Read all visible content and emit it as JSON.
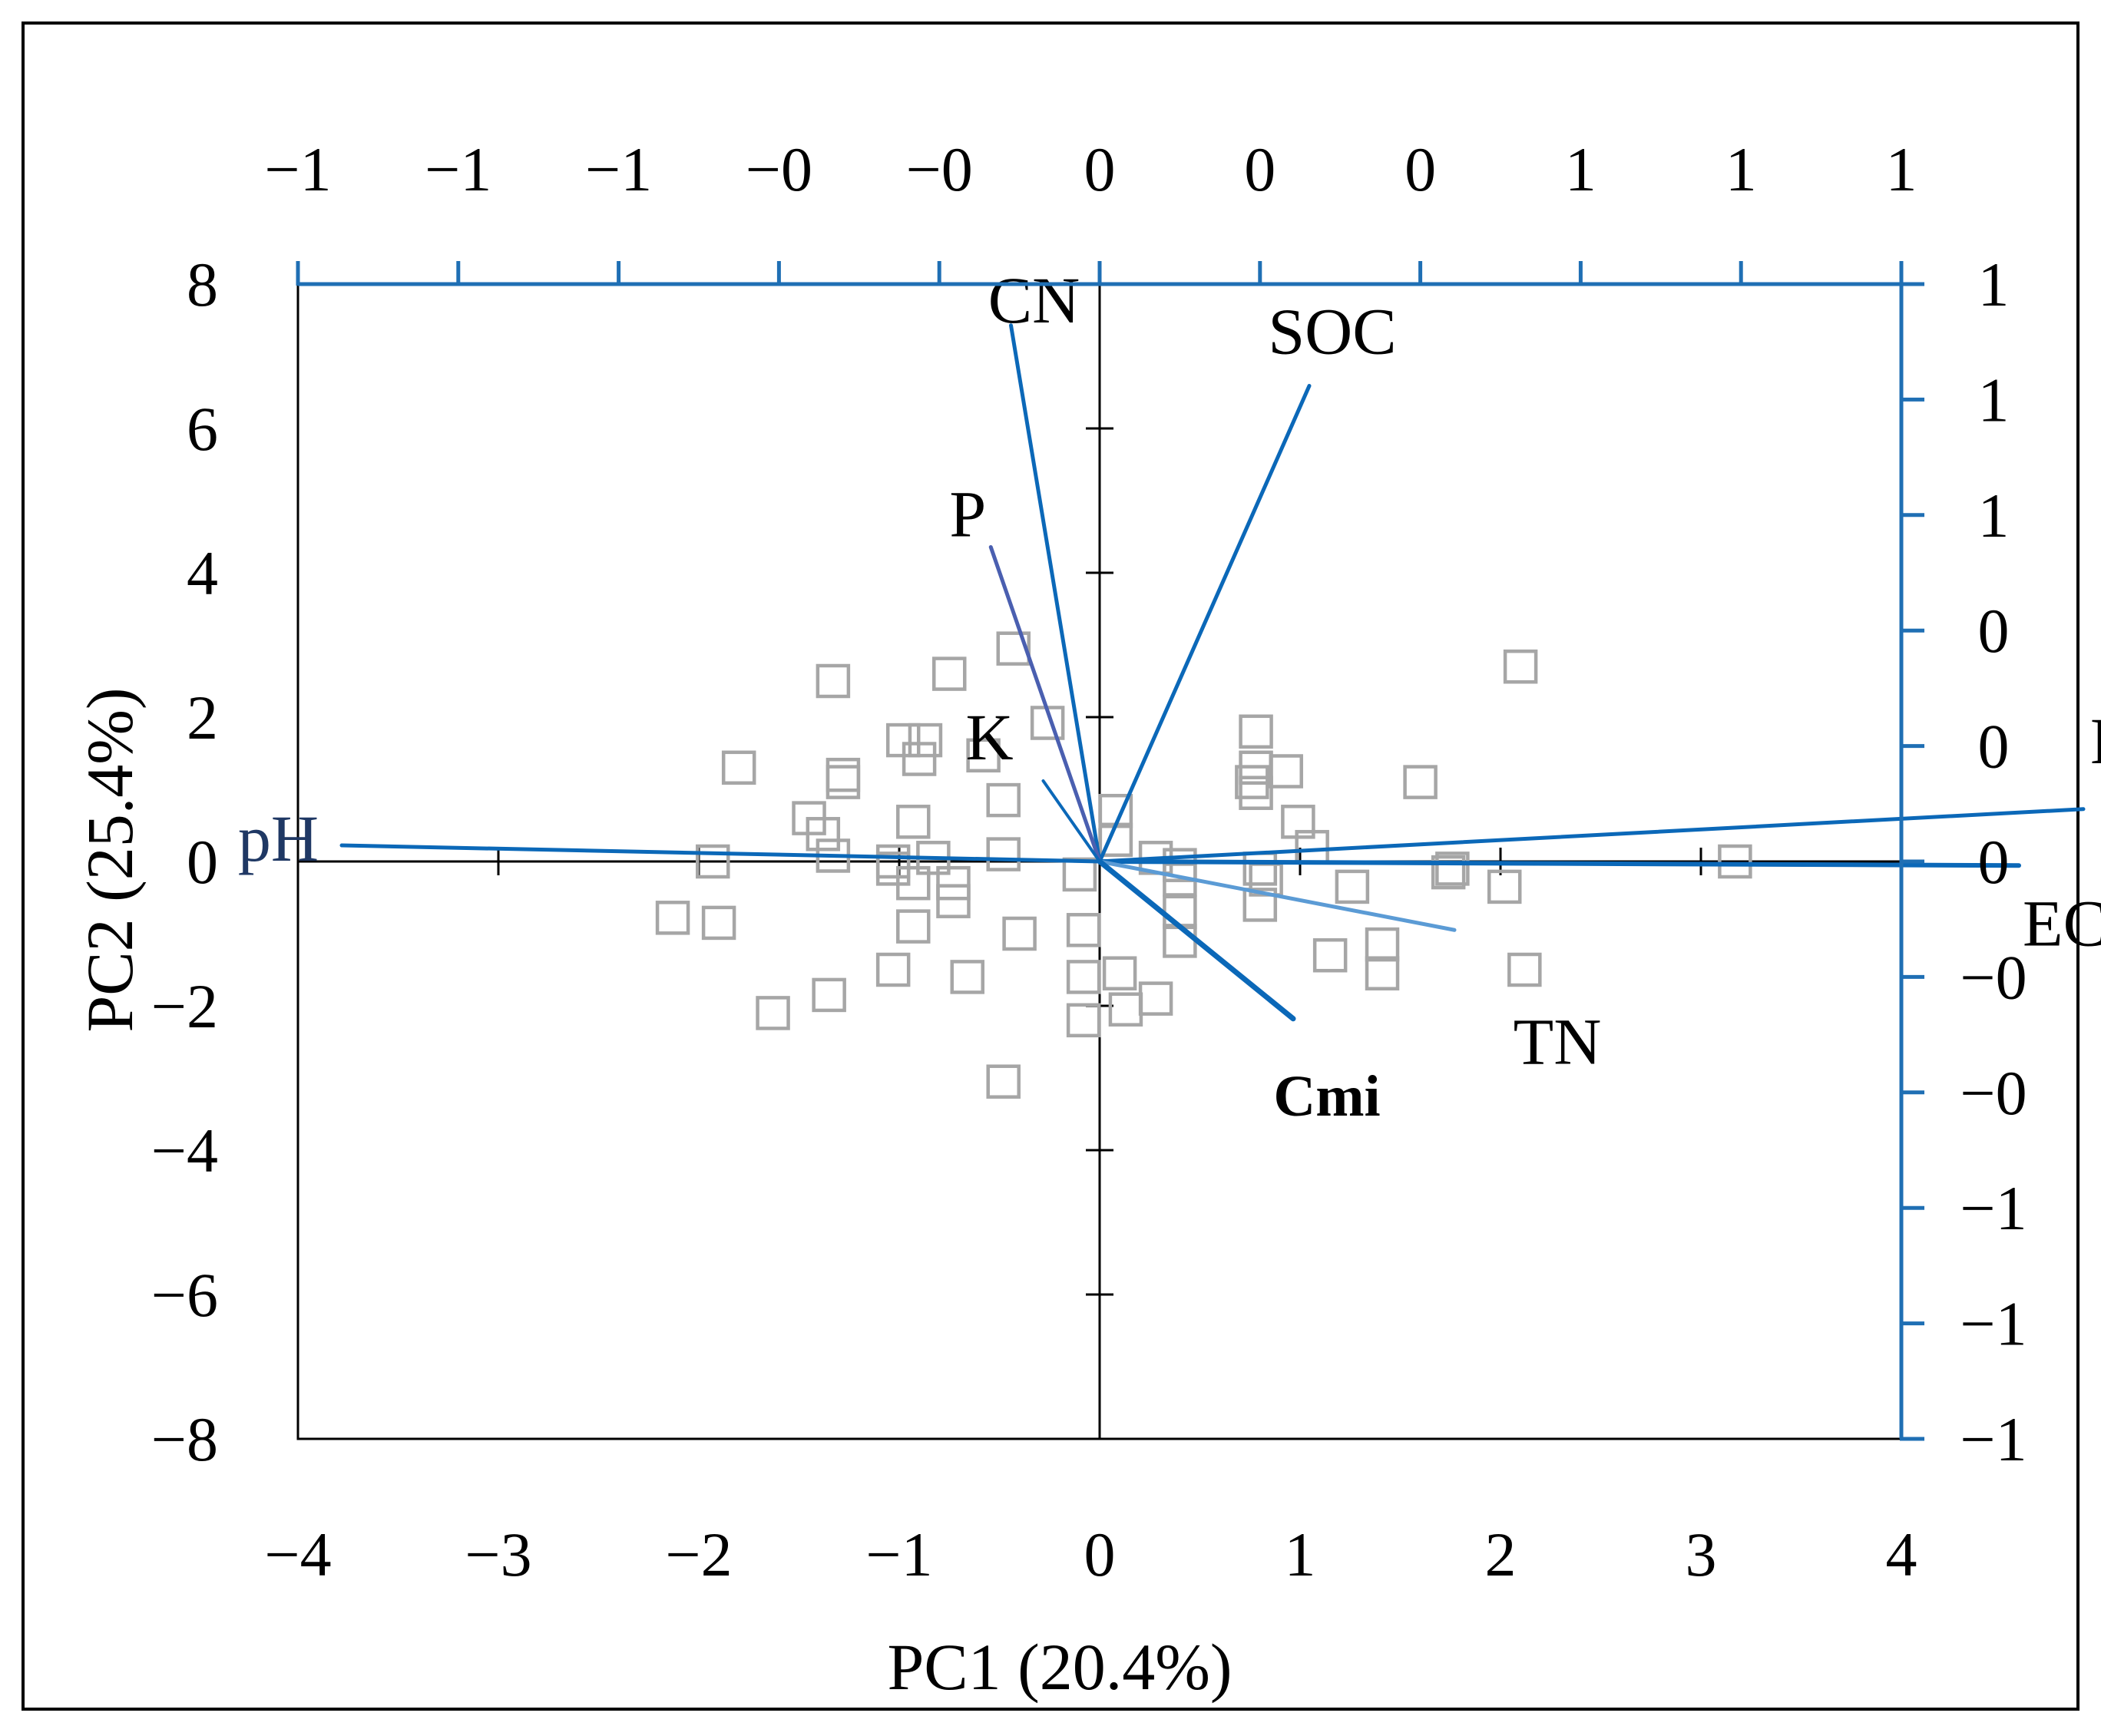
{
  "chart_data": {
    "type": "scatter",
    "subtype": "pca-biplot",
    "xlabel": "PC1 (20.4%)",
    "ylabel": "PC2 (25.4%)",
    "xlim": [
      -4,
      4
    ],
    "ylim": [
      -8,
      8
    ],
    "x_ticks": [
      -4,
      -3,
      -2,
      -1,
      0,
      1,
      2,
      3,
      4
    ],
    "x_tick_labels": [
      "−4",
      "−3",
      "−2",
      "−1",
      "0",
      "1",
      "2",
      "3",
      "4"
    ],
    "y_ticks": [
      -8,
      -6,
      -4,
      -2,
      0,
      2,
      4,
      6,
      8
    ],
    "y_tick_labels": [
      "−8",
      "−6",
      "−4",
      "−2",
      "0",
      "2",
      "4",
      "6",
      "8"
    ],
    "top_axis": {
      "lim": [
        -1,
        1
      ],
      "ticks": [
        -1,
        -0.8,
        -0.6,
        -0.4,
        -0.2,
        0,
        0.2,
        0.4,
        0.6,
        0.8,
        1
      ],
      "tick_labels": [
        "−1",
        "−1",
        "−1",
        "−0",
        "−0",
        "0",
        "0",
        "0",
        "1",
        "1",
        "1"
      ]
    },
    "right_axis": {
      "lim": [
        -1,
        1
      ],
      "ticks": [
        1,
        0.8,
        0.6,
        0.4,
        0.2,
        0,
        -0.2,
        -0.4,
        -0.6,
        -0.8,
        -1
      ],
      "tick_labels": [
        "1",
        "1",
        "1",
        "0",
        "0",
        "0",
        "−0",
        "−0",
        "−1",
        "−1",
        "−1"
      ]
    },
    "scores": [
      [
        -1.33,
        2.5
      ],
      [
        -0.75,
        2.6
      ],
      [
        -0.43,
        2.95
      ],
      [
        -0.26,
        1.92
      ],
      [
        -1.8,
        1.3
      ],
      [
        -1.28,
        1.1
      ],
      [
        -1.28,
        1.2
      ],
      [
        -0.98,
        1.68
      ],
      [
        -0.87,
        1.68
      ],
      [
        -0.9,
        1.42
      ],
      [
        -0.58,
        1.47
      ],
      [
        -0.48,
        0.85
      ],
      [
        -1.45,
        0.6
      ],
      [
        -1.38,
        0.38
      ],
      [
        -1.33,
        0.08
      ],
      [
        -0.93,
        0.55
      ],
      [
        -1.93,
        0.0
      ],
      [
        -1.03,
        0.0
      ],
      [
        -1.03,
        -0.1
      ],
      [
        -0.93,
        -0.3
      ],
      [
        -0.73,
        -0.3
      ],
      [
        -0.73,
        -0.55
      ],
      [
        -0.83,
        0.05
      ],
      [
        -0.48,
        0.1
      ],
      [
        -0.93,
        -0.9
      ],
      [
        -2.13,
        -0.78
      ],
      [
        -1.9,
        -0.85
      ],
      [
        -1.35,
        -1.85
      ],
      [
        -1.63,
        -2.1
      ],
      [
        -1.03,
        -1.5
      ],
      [
        -0.66,
        -1.6
      ],
      [
        -0.4,
        -1.0
      ],
      [
        -0.48,
        -3.05
      ],
      [
        -0.08,
        -0.95
      ],
      [
        -0.08,
        -1.6
      ],
      [
        -0.08,
        -2.2
      ],
      [
        0.1,
        -1.55
      ],
      [
        0.13,
        -2.05
      ],
      [
        0.28,
        -1.9
      ],
      [
        -0.1,
        -0.18
      ],
      [
        0.08,
        0.7
      ],
      [
        0.08,
        0.3
      ],
      [
        0.28,
        0.05
      ],
      [
        0.4,
        -0.05
      ],
      [
        0.4,
        -0.25
      ],
      [
        0.4,
        -0.7
      ],
      [
        0.4,
        -1.1
      ],
      [
        0.78,
        1.8
      ],
      [
        0.78,
        1.3
      ],
      [
        0.76,
        1.1
      ],
      [
        0.78,
        0.95
      ],
      [
        0.93,
        1.25
      ],
      [
        0.99,
        0.55
      ],
      [
        1.06,
        0.2
      ],
      [
        0.8,
        -0.1
      ],
      [
        0.8,
        -0.6
      ],
      [
        0.83,
        -0.25
      ],
      [
        1.26,
        -0.35
      ],
      [
        1.15,
        -1.3
      ],
      [
        1.41,
        -1.15
      ],
      [
        1.41,
        -1.55
      ],
      [
        1.6,
        1.1
      ],
      [
        1.74,
        -0.15
      ],
      [
        1.76,
        -0.1
      ],
      [
        2.02,
        -0.35
      ],
      [
        2.1,
        2.7
      ],
      [
        2.12,
        -1.5
      ],
      [
        3.17,
        0.0
      ]
    ],
    "loadings": [
      {
        "name": "pH",
        "x": -0.94,
        "y": 0.02
      },
      {
        "name": "CN",
        "x": -0.11,
        "y": 0.665
      },
      {
        "name": "SOC",
        "x": 0.26,
        "y": 0.59
      },
      {
        "name": "P",
        "x": -0.135,
        "y": 0.39
      },
      {
        "name": "K",
        "x": -0.07,
        "y": 0.1
      },
      {
        "name": "N",
        "x": 1.22,
        "y": 0.065
      },
      {
        "name": "EC",
        "x": 1.14,
        "y": -0.005
      },
      {
        "name": "TN",
        "x": 0.44,
        "y": -0.085
      },
      {
        "name": "Cmi",
        "x": 0.24,
        "y": -0.195
      }
    ],
    "loading_labels": [
      "pH",
      "CN",
      "SOC",
      "P",
      "K",
      "N",
      "EC",
      "TN",
      "Cmi"
    ]
  },
  "colors": {
    "axis": "#000000",
    "secondary_axis": "#1f6fb4",
    "marker": "#a6a6a6",
    "loading_main": "#0b68b8",
    "loading_light": "#5b9bd5",
    "loading_purple": "#4a5fb0",
    "ph_label": "#1f3864"
  }
}
